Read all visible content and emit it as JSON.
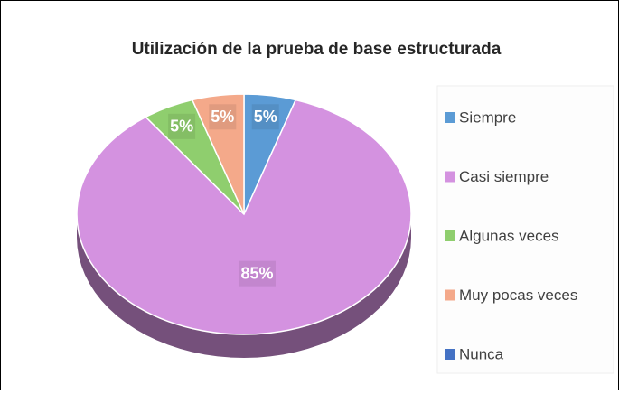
{
  "chart_data": {
    "type": "pie",
    "title": "Utilización de la prueba de base estructurada",
    "categories": [
      "Siempre",
      "Casi siempre",
      "Algunas veces",
      "Muy pocas veces",
      "Nunca"
    ],
    "values": [
      5,
      85,
      5,
      5,
      0
    ],
    "value_labels": [
      "5%",
      "85%",
      "5%",
      "5%",
      null
    ],
    "colors": [
      "#5b9bd5",
      "#d492e0",
      "#8fce6e",
      "#f4a98a",
      "#4472c4"
    ],
    "legend": "right"
  }
}
